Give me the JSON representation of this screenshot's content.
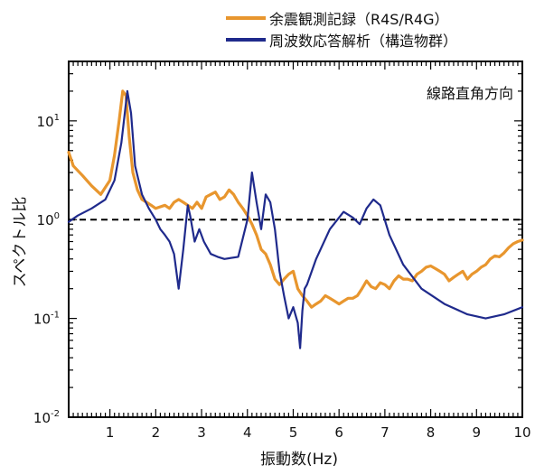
{
  "chart_data": {
    "type": "line",
    "title": "",
    "xlabel": "振動数(Hz)",
    "ylabel": "スペクトル比",
    "annotation": "線路直角方向",
    "xlim": [
      0.1,
      10
    ],
    "ylim": [
      0.01,
      40
    ],
    "yscale": "log",
    "x_ticks": [
      1,
      2,
      3,
      4,
      5,
      6,
      7,
      8,
      9,
      10
    ],
    "y_ticks": [
      {
        "value": 0.01,
        "base": "10",
        "exp": "-2"
      },
      {
        "value": 0.1,
        "base": "10",
        "exp": "-1"
      },
      {
        "value": 1,
        "base": "10",
        "exp": "0"
      },
      {
        "value": 10,
        "base": "10",
        "exp": "1"
      }
    ],
    "reference_line": {
      "y": 1,
      "style": "dashed",
      "color": "#000000"
    },
    "legend_position": "top-right",
    "series": [
      {
        "name": "余震観測記録（R4S/R4G）",
        "color": "#E8962E",
        "x": [
          0.1,
          0.2,
          0.4,
          0.6,
          0.8,
          1.0,
          1.1,
          1.2,
          1.28,
          1.35,
          1.42,
          1.5,
          1.6,
          1.7,
          1.8,
          1.9,
          2.0,
          2.1,
          2.2,
          2.3,
          2.4,
          2.5,
          2.6,
          2.7,
          2.8,
          2.9,
          3.0,
          3.1,
          3.2,
          3.3,
          3.4,
          3.5,
          3.6,
          3.7,
          3.8,
          3.9,
          4.0,
          4.1,
          4.2,
          4.3,
          4.4,
          4.5,
          4.6,
          4.7,
          4.8,
          4.9,
          5.0,
          5.1,
          5.2,
          5.3,
          5.4,
          5.5,
          5.6,
          5.7,
          5.8,
          5.9,
          6.0,
          6.1,
          6.2,
          6.3,
          6.4,
          6.5,
          6.6,
          6.7,
          6.8,
          6.9,
          7.0,
          7.1,
          7.2,
          7.3,
          7.4,
          7.5,
          7.6,
          7.7,
          7.8,
          7.9,
          8.0,
          8.1,
          8.2,
          8.3,
          8.4,
          8.5,
          8.6,
          8.7,
          8.8,
          8.9,
          9.0,
          9.1,
          9.2,
          9.3,
          9.4,
          9.5,
          9.6,
          9.7,
          9.8,
          9.9,
          10.0
        ],
        "values": [
          4.8,
          3.5,
          2.8,
          2.2,
          1.8,
          2.5,
          4.5,
          10.0,
          20.0,
          18.0,
          7.0,
          3.0,
          2.0,
          1.6,
          1.5,
          1.4,
          1.3,
          1.35,
          1.4,
          1.3,
          1.5,
          1.6,
          1.5,
          1.4,
          1.3,
          1.5,
          1.3,
          1.7,
          1.8,
          1.9,
          1.6,
          1.7,
          2.0,
          1.8,
          1.5,
          1.3,
          1.1,
          0.9,
          0.7,
          0.5,
          0.45,
          0.35,
          0.25,
          0.22,
          0.25,
          0.28,
          0.3,
          0.2,
          0.17,
          0.15,
          0.13,
          0.14,
          0.15,
          0.17,
          0.16,
          0.15,
          0.14,
          0.15,
          0.16,
          0.16,
          0.17,
          0.2,
          0.24,
          0.21,
          0.2,
          0.23,
          0.22,
          0.2,
          0.24,
          0.27,
          0.25,
          0.25,
          0.24,
          0.28,
          0.3,
          0.33,
          0.34,
          0.32,
          0.3,
          0.28,
          0.24,
          0.26,
          0.28,
          0.3,
          0.25,
          0.28,
          0.3,
          0.33,
          0.35,
          0.4,
          0.43,
          0.42,
          0.46,
          0.52,
          0.57,
          0.6,
          0.62
        ]
      },
      {
        "name": "周波数応答解析（構造物群）",
        "color": "#1F2A8C",
        "x": [
          0.1,
          0.3,
          0.6,
          0.9,
          1.1,
          1.25,
          1.38,
          1.46,
          1.55,
          1.7,
          1.85,
          2.0,
          2.1,
          2.2,
          2.3,
          2.4,
          2.5,
          2.6,
          2.7,
          2.75,
          2.85,
          2.95,
          3.05,
          3.2,
          3.35,
          3.5,
          3.8,
          4.0,
          4.1,
          4.2,
          4.3,
          4.4,
          4.5,
          4.6,
          4.65,
          4.7,
          4.8,
          4.9,
          5.0,
          5.1,
          5.15,
          5.2,
          5.25,
          5.3,
          5.5,
          5.8,
          6.1,
          6.3,
          6.45,
          6.6,
          6.75,
          6.9,
          7.1,
          7.4,
          7.8,
          8.3,
          8.8,
          9.2,
          9.6,
          10.0
        ],
        "values": [
          0.95,
          1.1,
          1.3,
          1.6,
          2.5,
          6.0,
          20.0,
          12.0,
          3.5,
          1.8,
          1.3,
          1.0,
          0.8,
          0.7,
          0.6,
          0.45,
          0.2,
          0.5,
          1.4,
          1.1,
          0.6,
          0.8,
          0.6,
          0.45,
          0.42,
          0.4,
          0.42,
          1.0,
          3.0,
          1.5,
          0.8,
          1.8,
          1.5,
          0.8,
          0.5,
          0.3,
          0.17,
          0.1,
          0.13,
          0.09,
          0.05,
          0.12,
          0.2,
          0.22,
          0.4,
          0.8,
          1.2,
          1.05,
          0.9,
          1.3,
          1.6,
          1.4,
          0.7,
          0.35,
          0.2,
          0.14,
          0.11,
          0.1,
          0.11,
          0.13
        ]
      }
    ]
  }
}
